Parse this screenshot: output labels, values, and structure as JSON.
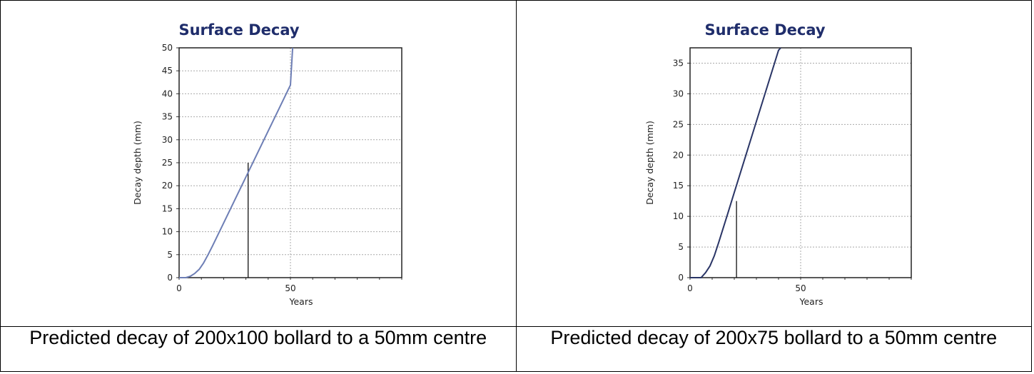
{
  "captions": [
    "Predicted decay of 200x100 bollard to a 50mm centre",
    "Predicted decay of 200x75 bollard to a 50mm centre"
  ],
  "chart_data": [
    {
      "type": "line",
      "title": "Surface Decay",
      "xlabel": "Years",
      "ylabel": "Decay depth (mm)",
      "xlim": [
        0,
        100
      ],
      "ylim": [
        0,
        50
      ],
      "x_ticks": [
        0,
        50
      ],
      "y_ticks": [
        0,
        5,
        10,
        15,
        20,
        25,
        30,
        35,
        40,
        45,
        50
      ],
      "grid": true,
      "line_color": "#6d7eb5",
      "series": [
        {
          "x": [
            0,
            3,
            5,
            7,
            9,
            11,
            13,
            15,
            20,
            25,
            30,
            35,
            40,
            45,
            50,
            51
          ],
          "y": [
            0,
            0,
            0.3,
            0.9,
            1.8,
            3.2,
            5.0,
            6.9,
            11.9,
            16.9,
            21.9,
            26.9,
            31.9,
            36.9,
            41.9,
            50
          ]
        }
      ],
      "marker_line": {
        "x": 31,
        "y": 25
      }
    },
    {
      "type": "line",
      "title": "Surface Decay",
      "xlabel": "Years",
      "ylabel": "Decay depth (mm)",
      "xlim": [
        0,
        100
      ],
      "ylim": [
        0,
        37.5
      ],
      "x_ticks": [
        0,
        50
      ],
      "y_ticks": [
        0,
        5,
        10,
        15,
        20,
        25,
        30,
        35
      ],
      "grid": true,
      "line_color": "#2a3566",
      "series": [
        {
          "x": [
            0,
            5,
            7,
            9,
            11,
            13,
            15,
            17,
            20,
            25,
            30,
            35,
            40,
            41
          ],
          "y": [
            0,
            0,
            0.8,
            1.9,
            3.6,
            5.8,
            8.1,
            10.4,
            13.9,
            19.7,
            25.5,
            31.3,
            37.1,
            37.5
          ]
        }
      ],
      "marker_line": {
        "x": 21,
        "y": 12.5
      }
    }
  ]
}
